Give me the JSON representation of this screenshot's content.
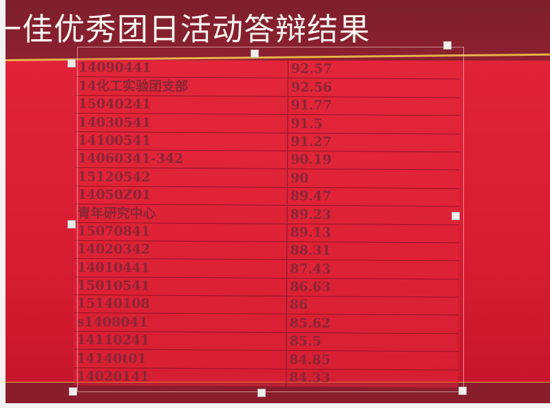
{
  "slide": {
    "title": "一佳优秀团日活动答辩结果",
    "colors": {
      "header": "#7e1f2c",
      "body": "#e3253a",
      "accent_line": "#e7b24a",
      "text": "#8a2535"
    }
  },
  "table": {
    "rows": [
      {
        "name": "14090441",
        "score": "92.57"
      },
      {
        "name": "14化工实验团支部",
        "score": "92.56"
      },
      {
        "name": "15040241",
        "score": "91.77"
      },
      {
        "name": "14030541",
        "score": "91.5"
      },
      {
        "name": "14100541",
        "score": "91.27"
      },
      {
        "name": "14060341-342",
        "score": "90.19"
      },
      {
        "name": "15120542",
        "score": "90"
      },
      {
        "name": "14050Z01",
        "score": "89.47"
      },
      {
        "name": "青年研究中心",
        "score": "89.23"
      },
      {
        "name": "15070841",
        "score": "89.13"
      },
      {
        "name": "14020342",
        "score": "88.31"
      },
      {
        "name": "14010441",
        "score": "87.43"
      },
      {
        "name": "15010541",
        "score": "86.63"
      },
      {
        "name": "15140108",
        "score": "86"
      },
      {
        "name": "s1408041",
        "score": "85.62"
      },
      {
        "name": "14110241",
        "score": "85.5"
      },
      {
        "name": "14140t01",
        "score": "84.85"
      },
      {
        "name": "14020141",
        "score": "84.33"
      }
    ]
  }
}
